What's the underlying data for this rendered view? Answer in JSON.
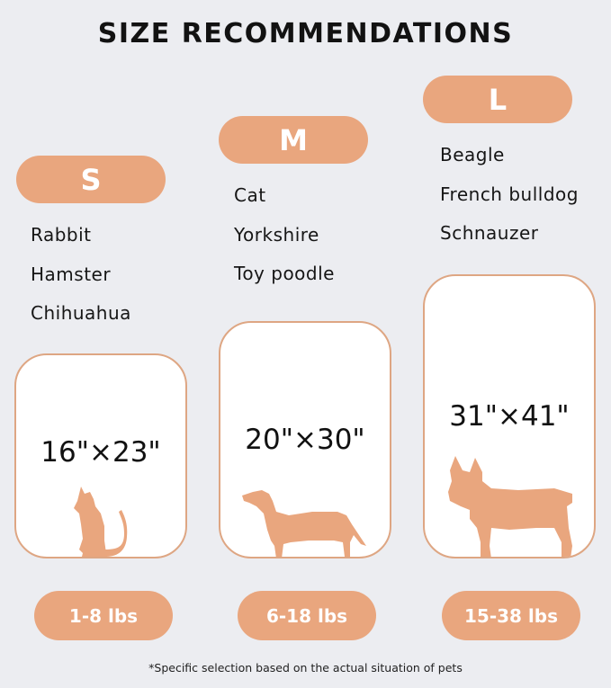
{
  "title": "SIZE RECOMMENDATIONS",
  "accent_color": "#E9A67E",
  "background_color": "#ECEDF1",
  "sizes": [
    {
      "label": "S",
      "pets": [
        "Rabbit",
        "Hamster",
        "Chihuahua"
      ],
      "dimensions": "16\"×23\"",
      "weight": "1-8 lbs",
      "icon": "cat-silhouette-icon"
    },
    {
      "label": "M",
      "pets": [
        "Cat",
        "Yorkshire",
        "Toy poodle"
      ],
      "dimensions": "20\"×30\"",
      "weight": "6-18 lbs",
      "icon": "dachshund-silhouette-icon"
    },
    {
      "label": "L",
      "pets": [
        "Beagle",
        "French bulldog",
        "Schnauzer"
      ],
      "dimensions": "31\"×41\"",
      "weight": "15-38 lbs",
      "icon": "french-bulldog-silhouette-icon"
    }
  ],
  "footnote": "*Specific selection based on the actual situation of pets"
}
